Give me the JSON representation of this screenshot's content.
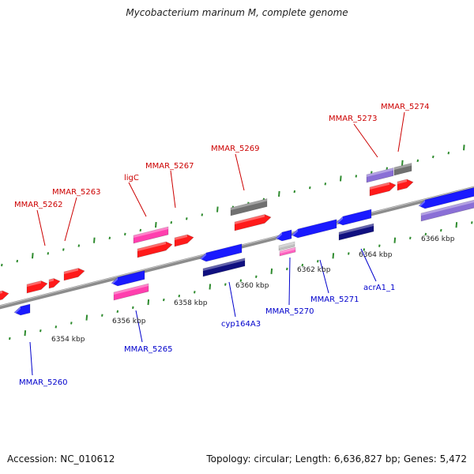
{
  "title": "Mycobacterium marinum M, complete genome",
  "footer": {
    "accession": "Accession: NC_010612",
    "summary": "Topology: circular; Length: 6,636,827 bp; Genes: 5,472"
  },
  "colors": {
    "backbone": "#8c8c8c",
    "tick": "#2e8b2e",
    "label_forward": "#cc0000",
    "label_reverse": "#0000cc",
    "red": "#ff1a1a",
    "magenta": "#ff3fae",
    "grey": "#707070",
    "lilac": "#8a6fd6",
    "blue": "#1a1aff",
    "navy": "#101080",
    "pink": "#ff5fbf"
  },
  "scale_labels": [
    "6354 kbp",
    "6356 kbp",
    "6358 kbp",
    "6360 kbp",
    "6362 kbp",
    "6364 kbp",
    "6366 kbp"
  ],
  "gene_labels": {
    "forward": [
      "MMAR_5262",
      "MMAR_5263",
      "ligC",
      "MMAR_5267",
      "MMAR_5269",
      "MMAR_5273",
      "MMAR_5274"
    ],
    "reverse": [
      "MMAR_5260",
      "MMAR_5265",
      "cyp164A3",
      "MMAR_5270",
      "MMAR_5271",
      "acrA1_1"
    ]
  }
}
